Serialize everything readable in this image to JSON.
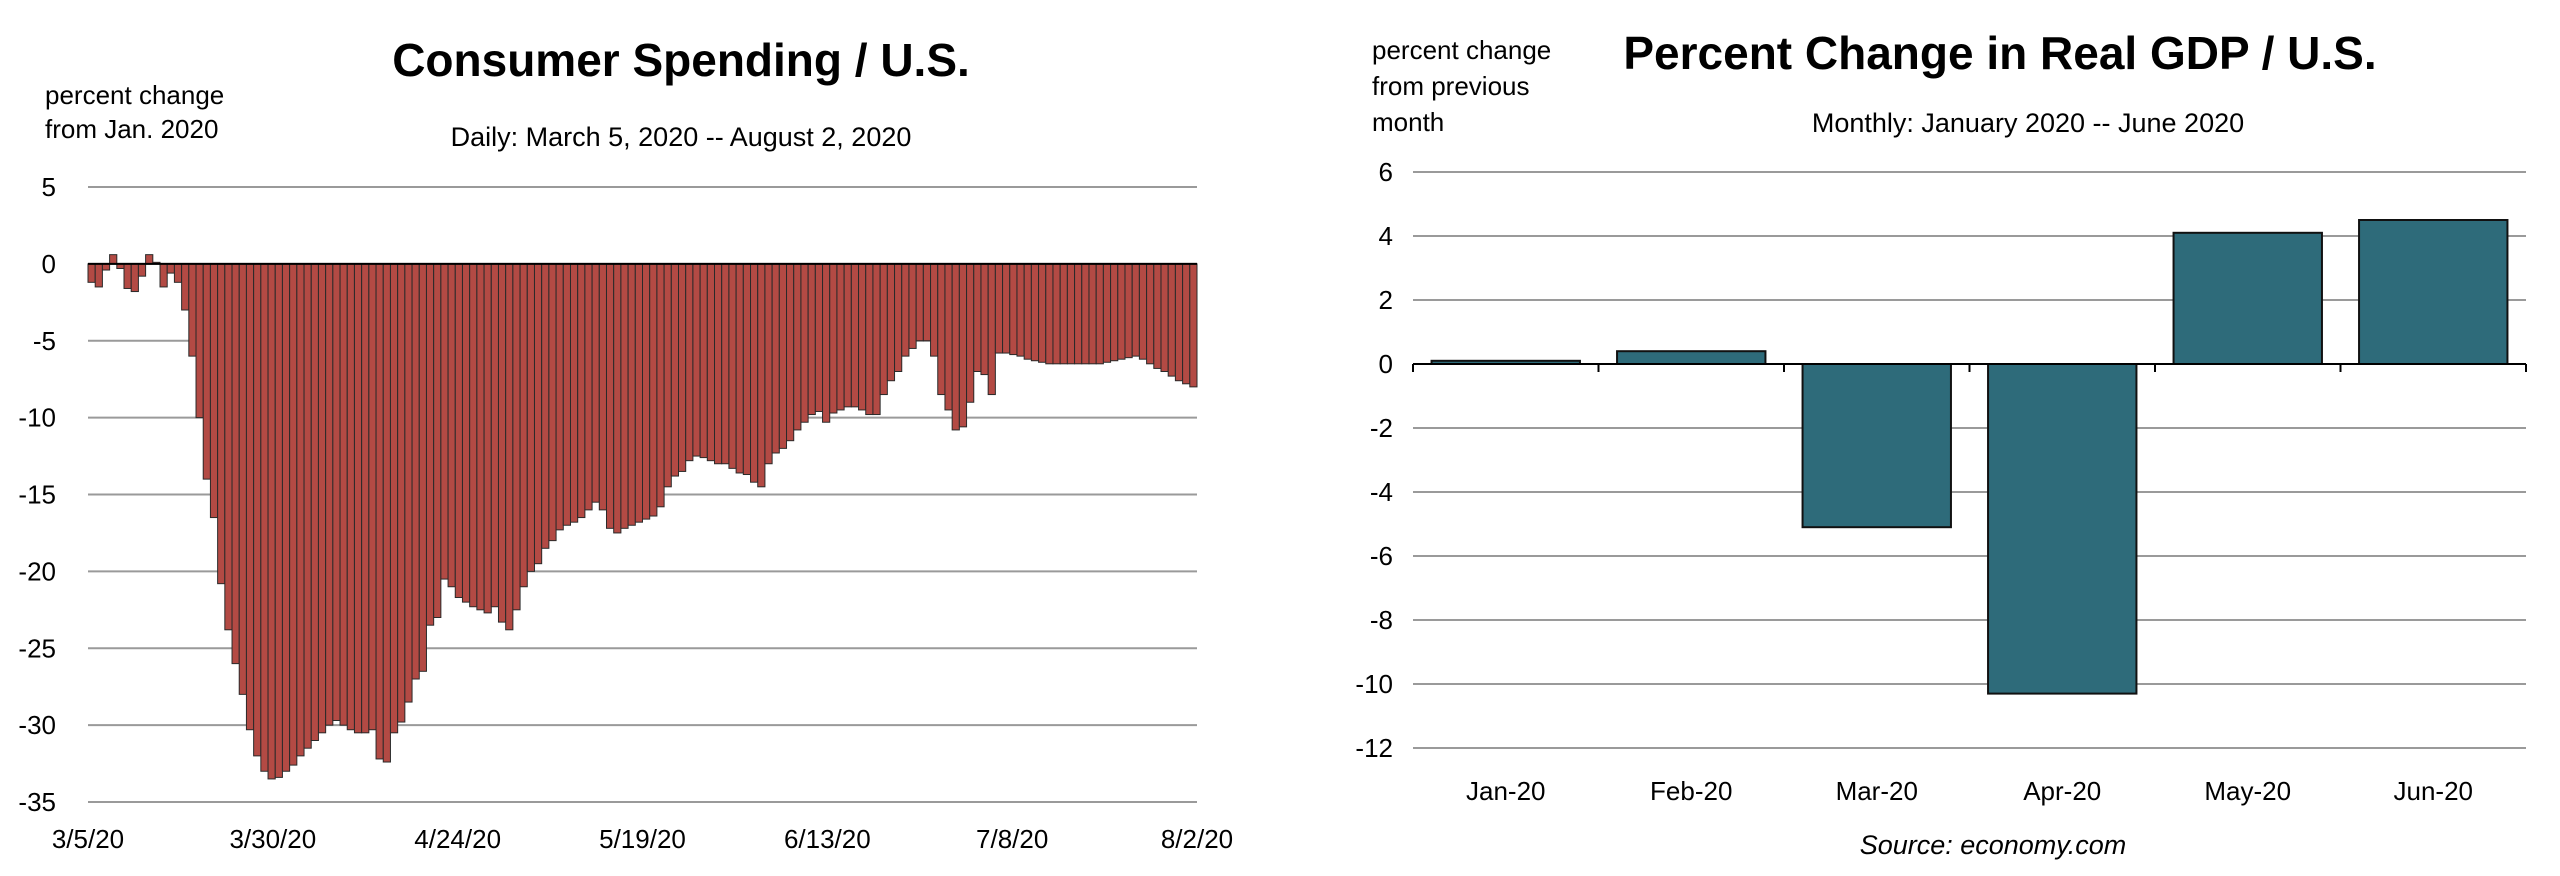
{
  "chart_data": [
    {
      "type": "bar",
      "title": "Consumer Spending / U.S.",
      "subtitle": "Daily: March 5, 2020 -- August 2, 2020",
      "ylabel_lines": [
        "percent change",
        "from Jan. 2020"
      ],
      "ylim": [
        -35,
        5
      ],
      "yticks": [
        5,
        0,
        -5,
        -10,
        -15,
        -20,
        -25,
        -30,
        -35
      ],
      "xtick_labels": [
        "3/5/20",
        "3/30/20",
        "4/24/20",
        "5/19/20",
        "6/13/20",
        "7/8/20",
        "8/2/20"
      ],
      "grid": true,
      "bar_color": "#b34a44",
      "values": [
        -1.2,
        -1.5,
        -0.4,
        0.6,
        -0.3,
        -1.6,
        -1.8,
        -0.8,
        0.6,
        0.1,
        -1.5,
        -0.6,
        -1.2,
        -3.0,
        -6.0,
        -10.0,
        -14.0,
        -16.5,
        -20.8,
        -23.8,
        -26.0,
        -28.0,
        -30.3,
        -32.0,
        -33.0,
        -33.5,
        -33.4,
        -33.0,
        -32.6,
        -32.0,
        -31.5,
        -31.0,
        -30.5,
        -30.0,
        -29.7,
        -30.0,
        -30.3,
        -30.5,
        -30.5,
        -30.3,
        -32.2,
        -32.4,
        -30.5,
        -29.8,
        -28.5,
        -27.0,
        -26.5,
        -23.5,
        -23.0,
        -20.5,
        -21.0,
        -21.7,
        -22.0,
        -22.3,
        -22.5,
        -22.7,
        -22.3,
        -23.3,
        -23.8,
        -22.5,
        -21.0,
        -20.0,
        -19.5,
        -18.5,
        -18.0,
        -17.3,
        -17.0,
        -16.8,
        -16.5,
        -16.0,
        -15.5,
        -16.0,
        -17.2,
        -17.5,
        -17.2,
        -17.0,
        -16.8,
        -16.6,
        -16.4,
        -15.8,
        -14.5,
        -13.8,
        -13.5,
        -12.8,
        -12.5,
        -12.6,
        -12.8,
        -13.0,
        -13.0,
        -13.3,
        -13.6,
        -13.7,
        -14.2,
        -14.5,
        -13.0,
        -12.3,
        -12.0,
        -11.5,
        -10.8,
        -10.3,
        -9.8,
        -9.6,
        -10.3,
        -9.7,
        -9.5,
        -9.3,
        -9.3,
        -9.5,
        -9.8,
        -9.8,
        -8.5,
        -7.6,
        -7.0,
        -6.0,
        -5.5,
        -5.0,
        -5.0,
        -6.0,
        -8.5,
        -9.5,
        -10.8,
        -10.6,
        -9.0,
        -7.0,
        -7.2,
        -8.5,
        -5.8,
        -5.8,
        -5.9,
        -6.0,
        -6.2,
        -6.3,
        -6.4,
        -6.5,
        -6.5,
        -6.5,
        -6.5,
        -6.5,
        -6.5,
        -6.5,
        -6.5,
        -6.4,
        -6.3,
        -6.2,
        -6.1,
        -6.0,
        -6.2,
        -6.5,
        -6.8,
        -7.0,
        -7.3,
        -7.6,
        -7.8,
        -8.0
      ]
    },
    {
      "type": "bar",
      "title": "Percent Change in Real GDP / U.S.",
      "subtitle": "Monthly: January 2020 -- June 2020",
      "ylabel_lines": [
        "percent change",
        "from previous",
        "month"
      ],
      "ylim": [
        -12,
        6
      ],
      "yticks": [
        6,
        4,
        2,
        0,
        -2,
        -4,
        -6,
        -8,
        -10,
        -12
      ],
      "categories": [
        "Jan-20",
        "Feb-20",
        "Mar-20",
        "Apr-20",
        "May-20",
        "Jun-20"
      ],
      "values": [
        0.1,
        0.4,
        -5.1,
        -10.3,
        4.1,
        4.5
      ],
      "grid": true,
      "bar_color": "#2e6b7a"
    }
  ],
  "source": "Source: economy.com"
}
